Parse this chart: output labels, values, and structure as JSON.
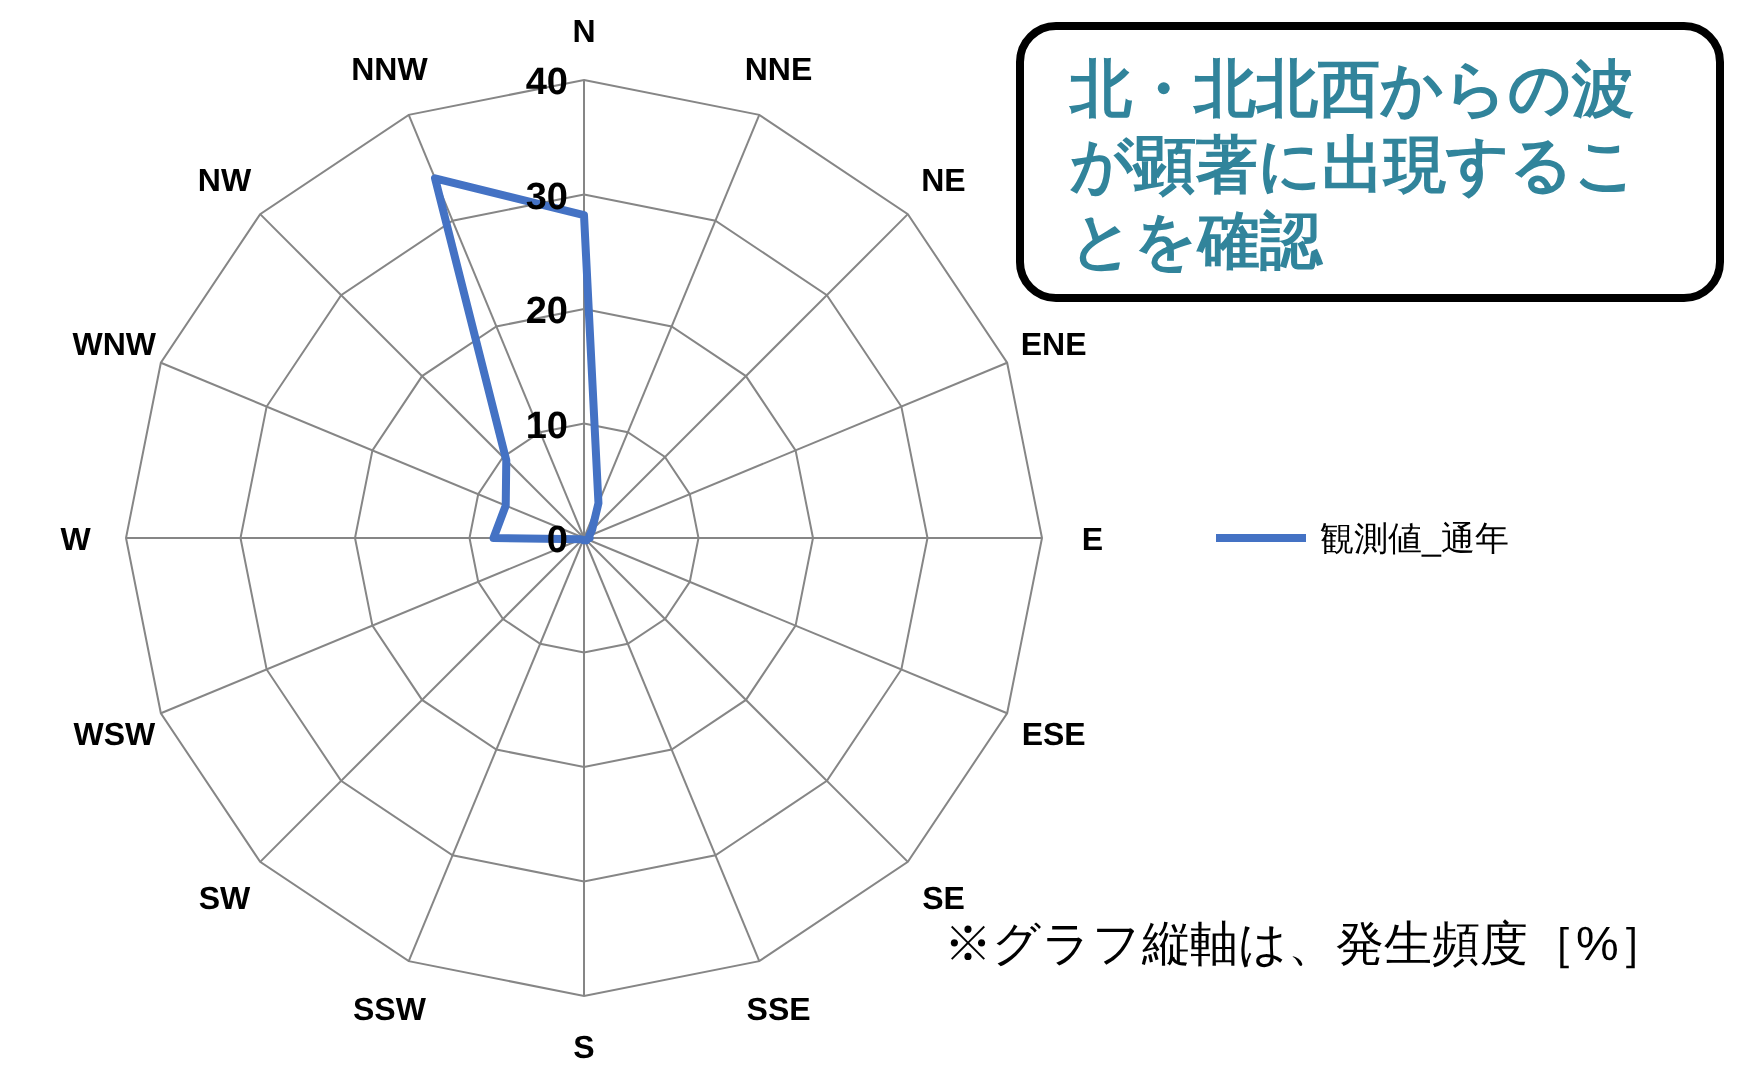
{
  "chart_data": {
    "type": "radar",
    "categories": [
      "N",
      "NNE",
      "NE",
      "ENE",
      "E",
      "ESE",
      "SE",
      "SSE",
      "S",
      "SSW",
      "SW",
      "WSW",
      "W",
      "WNW",
      "NW",
      "NNW"
    ],
    "series": [
      {
        "name": "観測値_通年",
        "color": "#4472c4",
        "values": [
          28.2,
          3.3,
          1,
          0.5,
          0.5,
          0.3,
          0.3,
          0.2,
          0.2,
          0.2,
          0.2,
          0.3,
          7.9,
          7.4,
          9.6,
          34
        ]
      }
    ],
    "ylim": [
      0,
      40
    ],
    "yticks": [
      0,
      10,
      20,
      30,
      40
    ],
    "grid": true,
    "legend": "right",
    "marker": "none",
    "line_style": "solid",
    "annotations": [
      "北・北北西からの波が顕著に出現することを確認",
      "※グラフ縦軸は、発生頻度［%］"
    ]
  }
}
